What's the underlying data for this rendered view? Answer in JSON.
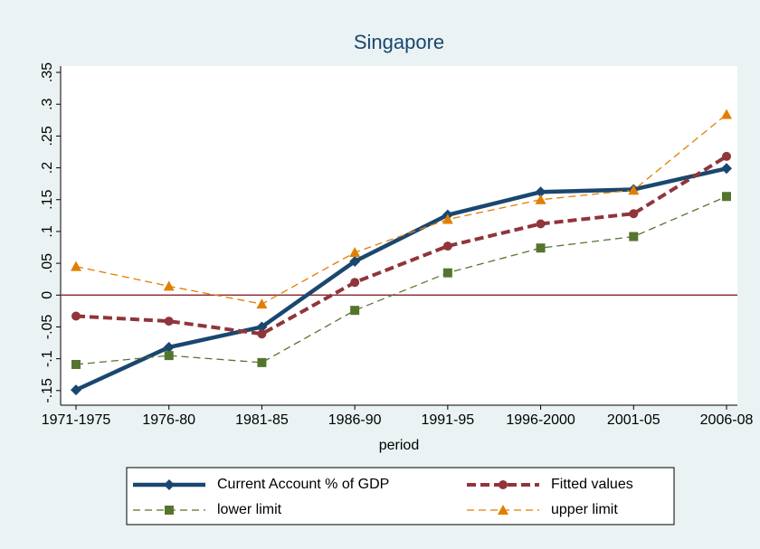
{
  "chart_data": {
    "type": "line",
    "title": "Singapore",
    "x_label": "period",
    "categories": [
      "1971-1975",
      "1976-80",
      "1981-85",
      "1986-90",
      "1991-95",
      "1996-2000",
      "2001-05",
      "2006-08"
    ],
    "series": [
      {
        "name": "Current Account % of GDP",
        "color": "#1a476f",
        "marker": "diamond",
        "line_style": "solid",
        "values": [
          -0.149,
          -0.082,
          -0.05,
          0.053,
          0.126,
          0.162,
          0.166,
          0.199
        ]
      },
      {
        "name": "Fitted values",
        "color": "#90353b",
        "marker": "circle",
        "line_style": "dash",
        "values": [
          -0.033,
          -0.041,
          -0.061,
          0.02,
          0.077,
          0.112,
          0.128,
          0.218
        ]
      },
      {
        "name": "lower limit",
        "color": "#55752f",
        "marker": "square",
        "line_style": "thin-dash",
        "values": [
          -0.109,
          -0.095,
          -0.106,
          -0.024,
          0.035,
          0.074,
          0.092,
          0.155
        ]
      },
      {
        "name": "upper limit",
        "color": "#e37e00",
        "marker": "triangle",
        "line_style": "thin-dash",
        "values": [
          0.045,
          0.014,
          -0.014,
          0.067,
          0.119,
          0.15,
          0.165,
          0.284
        ]
      }
    ],
    "ylim": [
      -0.173,
      0.36
    ],
    "yticks": [
      {
        "value": -0.15,
        "label": "-.15"
      },
      {
        "value": -0.1,
        "label": "-.1"
      },
      {
        "value": -0.05,
        "label": "-.05"
      },
      0,
      {
        "value": 0.05,
        "label": ".05"
      },
      {
        "value": 0.1,
        "label": ".1"
      },
      {
        "value": 0.15,
        "label": ".15"
      },
      {
        "value": 0.2,
        "label": ".2"
      },
      {
        "value": 0.25,
        "label": ".25"
      },
      {
        "value": 0.3,
        "label": ".3"
      },
      {
        "value": 0.35,
        "label": ".35"
      }
    ],
    "yline": 0,
    "yline_color": "#90353b",
    "grid": false
  }
}
